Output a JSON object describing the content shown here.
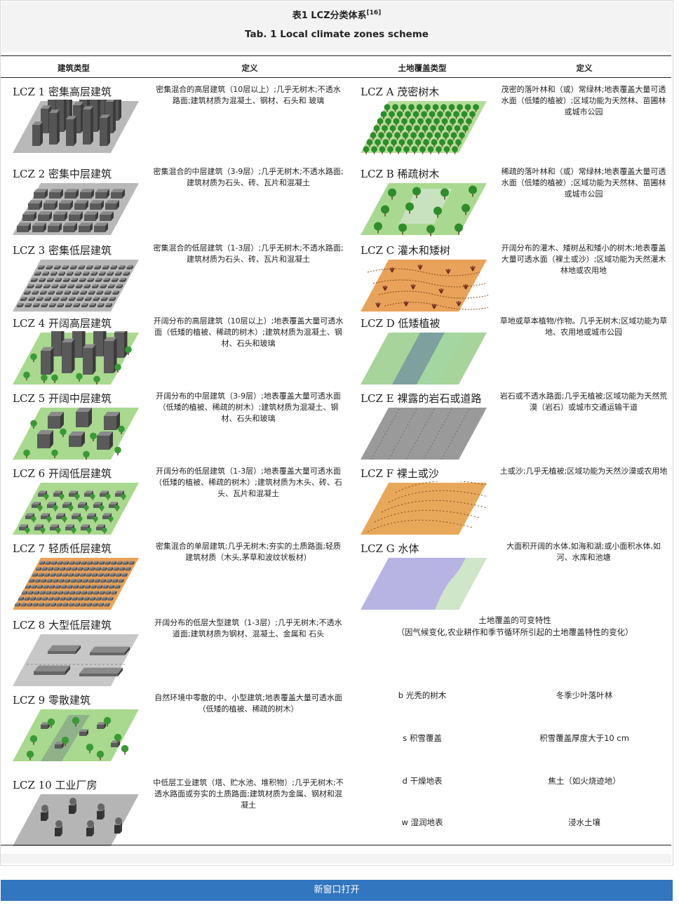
{
  "caption": {
    "title_cn": "表1   LCZ分类体系",
    "ref": "[16]",
    "title_en": "Tab. 1   Local climate zones scheme"
  },
  "headers": [
    "建筑类型",
    "定义",
    "土地覆盖类型",
    "定义"
  ],
  "built_rows": [
    {
      "label": "LCZ 1 密集高层建筑",
      "def": "密集混合的高层建筑（10层以上）;几乎无树木;不透水路面;建筑材质为混凝土、钢材、石头和 玻璃"
    },
    {
      "label": "LCZ 2 密集中层建筑",
      "def": "密集混合的中层建筑（3-9层）;几乎无树木;不透水路面;建筑材质为石头、砖、瓦片和混凝土"
    },
    {
      "label": "LCZ 3 密集低层建筑",
      "def": "密集混合的低层建筑（1-3层）;几乎无树木;不透水路面;建筑材质为石头、砖、瓦片和混凝土"
    },
    {
      "label": "LCZ 4 开阔高层建筑",
      "def": "开阔分布的高层建筑（10层以上）;地表覆盖大量可透水面（低矮的植被、稀疏的树木）;建筑材质为混凝土、钢材、石头和玻璃"
    },
    {
      "label": "LCZ 5 开阔中层建筑",
      "def": "开阔分布的中层建筑（3-9层）;地表覆盖大量可透水面（低矮的植被、稀疏的树木）;建筑材质为混凝土、钢材、石头和玻璃"
    },
    {
      "label": "LCZ 6 开阔低层建筑",
      "def": "开阔分布的低层建筑（1-3层）;地表覆盖大量可透水面（低矮的植被、稀疏的树木）;建筑材质为木头、砖、石头、瓦片和混凝土"
    },
    {
      "label": "LCZ 7 轻质低层建筑",
      "def": "密集混合的单层建筑;几乎无树木;夯实的土质路面;轻质建筑材质（木头,茅草和波纹状板材）"
    },
    {
      "label": "LCZ 8 大型低层建筑",
      "def": "开阔分布的低层大型建筑（1-3层）;几乎无树木;不透水道面;建筑材质为钢材、混凝土、金属和 石头"
    },
    {
      "label": "LCZ 9 零散建筑",
      "def": "自然环境中零散的中、小型建筑;地表覆盖大量可透水面（低矮的植被、稀疏的树木）"
    },
    {
      "label": "LCZ 10 工业厂房",
      "def": "中低层工业建筑（塔、贮水池、堆积物）;几乎无树木;不透水路面或夯实的土质路面;建筑材质为金属、钢材和混凝土"
    }
  ],
  "land_rows": [
    {
      "label": "LCZ A 茂密树木",
      "def": "茂密的落叶林和（或）常绿林;地表覆盖大量可透水面（低矮的植被）;区域功能为天然林、苗圃林或城市公园"
    },
    {
      "label": "LCZ B 稀疏树木",
      "def": "稀疏的落叶林和（或）常绿林;地表覆盖大量可透水面（低矮的植被）;区域功能为天然林、苗圃林或城市公园"
    },
    {
      "label": "LCZ C 灌木和矮树",
      "def": "开阔分布的灌木、矮树丛和矮小的树木;地表覆盖大量可透水面（裸土或沙）;区域功能为天然灌木林地或农用地"
    },
    {
      "label": "LCZ D 低矮植被",
      "def": "草地或草本植物/作物。几乎无树木;区域功能为草地、农用地或城市公园"
    },
    {
      "label": "LCZ E 裸露的岩石或道路",
      "def": "岩石或不透水路面;几乎无植被;区域功能为天然荒漠（岩石）或城市交通运输干道"
    },
    {
      "label": "LCZ F 裸土或沙",
      "def": "土或沙;几乎无植被;区域功能为天然沙漠或农用地"
    },
    {
      "label": "LCZ G 水体",
      "def": "大面积开阔的水体,如海和湖;或小面积水体,如河、水库和池塘"
    }
  ],
  "variable": {
    "title": "土地覆盖的可变特性",
    "subtitle": "（因气候变化,农业耕作和季节循环所引起的土地覆盖特性的变化）",
    "items": [
      {
        "type": "b 光秃的树木",
        "def": "冬季少叶落叶林"
      },
      {
        "type": "s 积雪覆盖",
        "def": "积雪覆盖厚度大于10 cm"
      },
      {
        "type": "d 干燥地表",
        "def": "焦土（如火烧迹地）"
      },
      {
        "type": "w 湿润地表",
        "def": "浸水土壤"
      }
    ]
  },
  "button": {
    "label": "新窗口打开"
  },
  "colors": {
    "button": "#3376c0",
    "caption_bg": "#f3f3f3",
    "grass": "#9fd37f",
    "tree": "#2f8f2a",
    "soil": "#e9a25a",
    "water": "#b6b3e2",
    "building": "#555555"
  }
}
